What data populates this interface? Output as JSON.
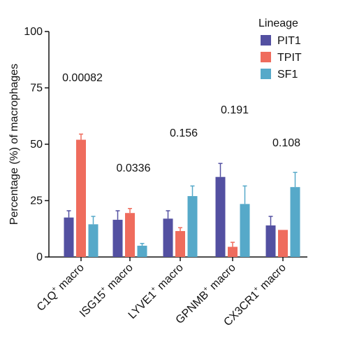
{
  "chart_data": {
    "type": "bar",
    "title": "",
    "xlabel": "",
    "ylabel": "Percentage (%) of macrophages",
    "ylim": [
      0,
      100
    ],
    "yticks": [
      "0",
      "25",
      "50",
      "75",
      "100"
    ],
    "categories": [
      {
        "base": "C1Q",
        "sup": "+",
        "rest": " macro"
      },
      {
        "base": "ISG15",
        "sup": "+",
        "rest": " macro"
      },
      {
        "base": "LYVE1",
        "sup": "+",
        "rest": " macro"
      },
      {
        "base": "GPNMB",
        "sup": "+",
        "rest": " macro"
      },
      {
        "base": "CX3CR1",
        "sup": "+",
        "rest": " macro"
      }
    ],
    "legend": {
      "title": "Lineage",
      "position": "top-right"
    },
    "series": [
      {
        "name": "PIT1",
        "color": "#5350A1",
        "values": [
          17.5,
          16.5,
          17.0,
          35.5,
          14.0
        ],
        "errors": [
          3.0,
          4.0,
          3.5,
          6.0,
          4.0
        ]
      },
      {
        "name": "TPIT",
        "color": "#EF6C5D",
        "values": [
          52.0,
          19.5,
          11.5,
          4.5,
          12.0
        ],
        "errors": [
          2.5,
          2.0,
          1.5,
          2.0,
          0.0
        ]
      },
      {
        "name": "SF1",
        "color": "#56A9C9",
        "values": [
          14.5,
          5.0,
          27.0,
          23.5,
          31.0
        ],
        "errors": [
          3.5,
          1.0,
          4.5,
          8.0,
          6.5
        ]
      }
    ],
    "annotations": [
      "0.00082",
      "0.0336",
      "0.156",
      "0.191",
      "0.108"
    ],
    "grid": false
  }
}
